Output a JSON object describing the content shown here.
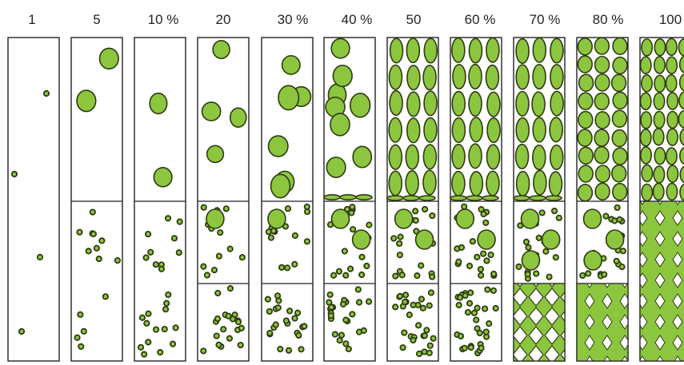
{
  "diagram": {
    "columns": [
      {
        "label": "1",
        "upper": "empty",
        "middle": "empty",
        "lower": "empty"
      },
      {
        "label": "5",
        "upper": "sparse",
        "middle": "dots",
        "lower": "dots"
      },
      {
        "label": "10 %",
        "upper": "sparse",
        "middle": "dots",
        "lower": "dots"
      },
      {
        "label": "20",
        "upper": "sparse",
        "middle": "dots",
        "lower": "dots"
      },
      {
        "label": "30 %",
        "upper": "medium",
        "middle": "dots",
        "lower": "dots"
      },
      {
        "label": "40 %",
        "upper": "medium",
        "middle": "dots",
        "lower": "dots"
      },
      {
        "label": "50",
        "upper": "dense",
        "middle": "dots",
        "lower": "dots"
      },
      {
        "label": "60 %",
        "upper": "dense",
        "middle": "dots",
        "lower": "dots"
      },
      {
        "label": "70 %",
        "upper": "dense",
        "middle": "dots",
        "lower": "diamond"
      },
      {
        "label": "80 %",
        "upper": "packed",
        "middle": "dots",
        "lower": "diamond"
      },
      {
        "label": "100",
        "upper": "packed",
        "middle": "diamond",
        "lower": "diamond"
      }
    ],
    "colors": {
      "fill": "#8cc63f",
      "stroke": "#2f3a10",
      "frame": "#222222"
    }
  }
}
